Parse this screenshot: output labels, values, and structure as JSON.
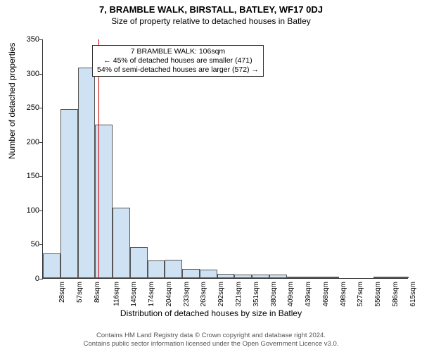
{
  "title": "7, BRAMBLE WALK, BIRSTALL, BATLEY, WF17 0DJ",
  "subtitle": "Size of property relative to detached houses in Batley",
  "ylabel": "Number of detached properties",
  "xlabel": "Distribution of detached houses by size in Batley",
  "footer1": "Contains HM Land Registry data © Crown copyright and database right 2024.",
  "footer2": "Contains public sector information licensed under the Open Government Licence v3.0.",
  "chart": {
    "type": "histogram",
    "ylim": [
      0,
      350
    ],
    "ytick_step": 50,
    "bar_fill": "#cfe2f3",
    "bar_border": "#555555",
    "background": "#ffffff",
    "categories": [
      "28sqm",
      "57sqm",
      "86sqm",
      "116sqm",
      "145sqm",
      "174sqm",
      "204sqm",
      "233sqm",
      "263sqm",
      "292sqm",
      "321sqm",
      "351sqm",
      "380sqm",
      "409sqm",
      "439sqm",
      "468sqm",
      "498sqm",
      "527sqm",
      "556sqm",
      "586sqm",
      "615sqm"
    ],
    "values": [
      36,
      247,
      308,
      224,
      103,
      45,
      26,
      27,
      13,
      12,
      6,
      5,
      5,
      5,
      2,
      1,
      1,
      0,
      0,
      1,
      1
    ],
    "marker": {
      "position_index": 2.7,
      "color": "#cc0000"
    }
  },
  "annotation": {
    "line1": "7 BRAMBLE WALK: 106sqm",
    "line2": "← 45% of detached houses are smaller (471)",
    "line3": "54% of semi-detached houses are larger (572) →"
  }
}
